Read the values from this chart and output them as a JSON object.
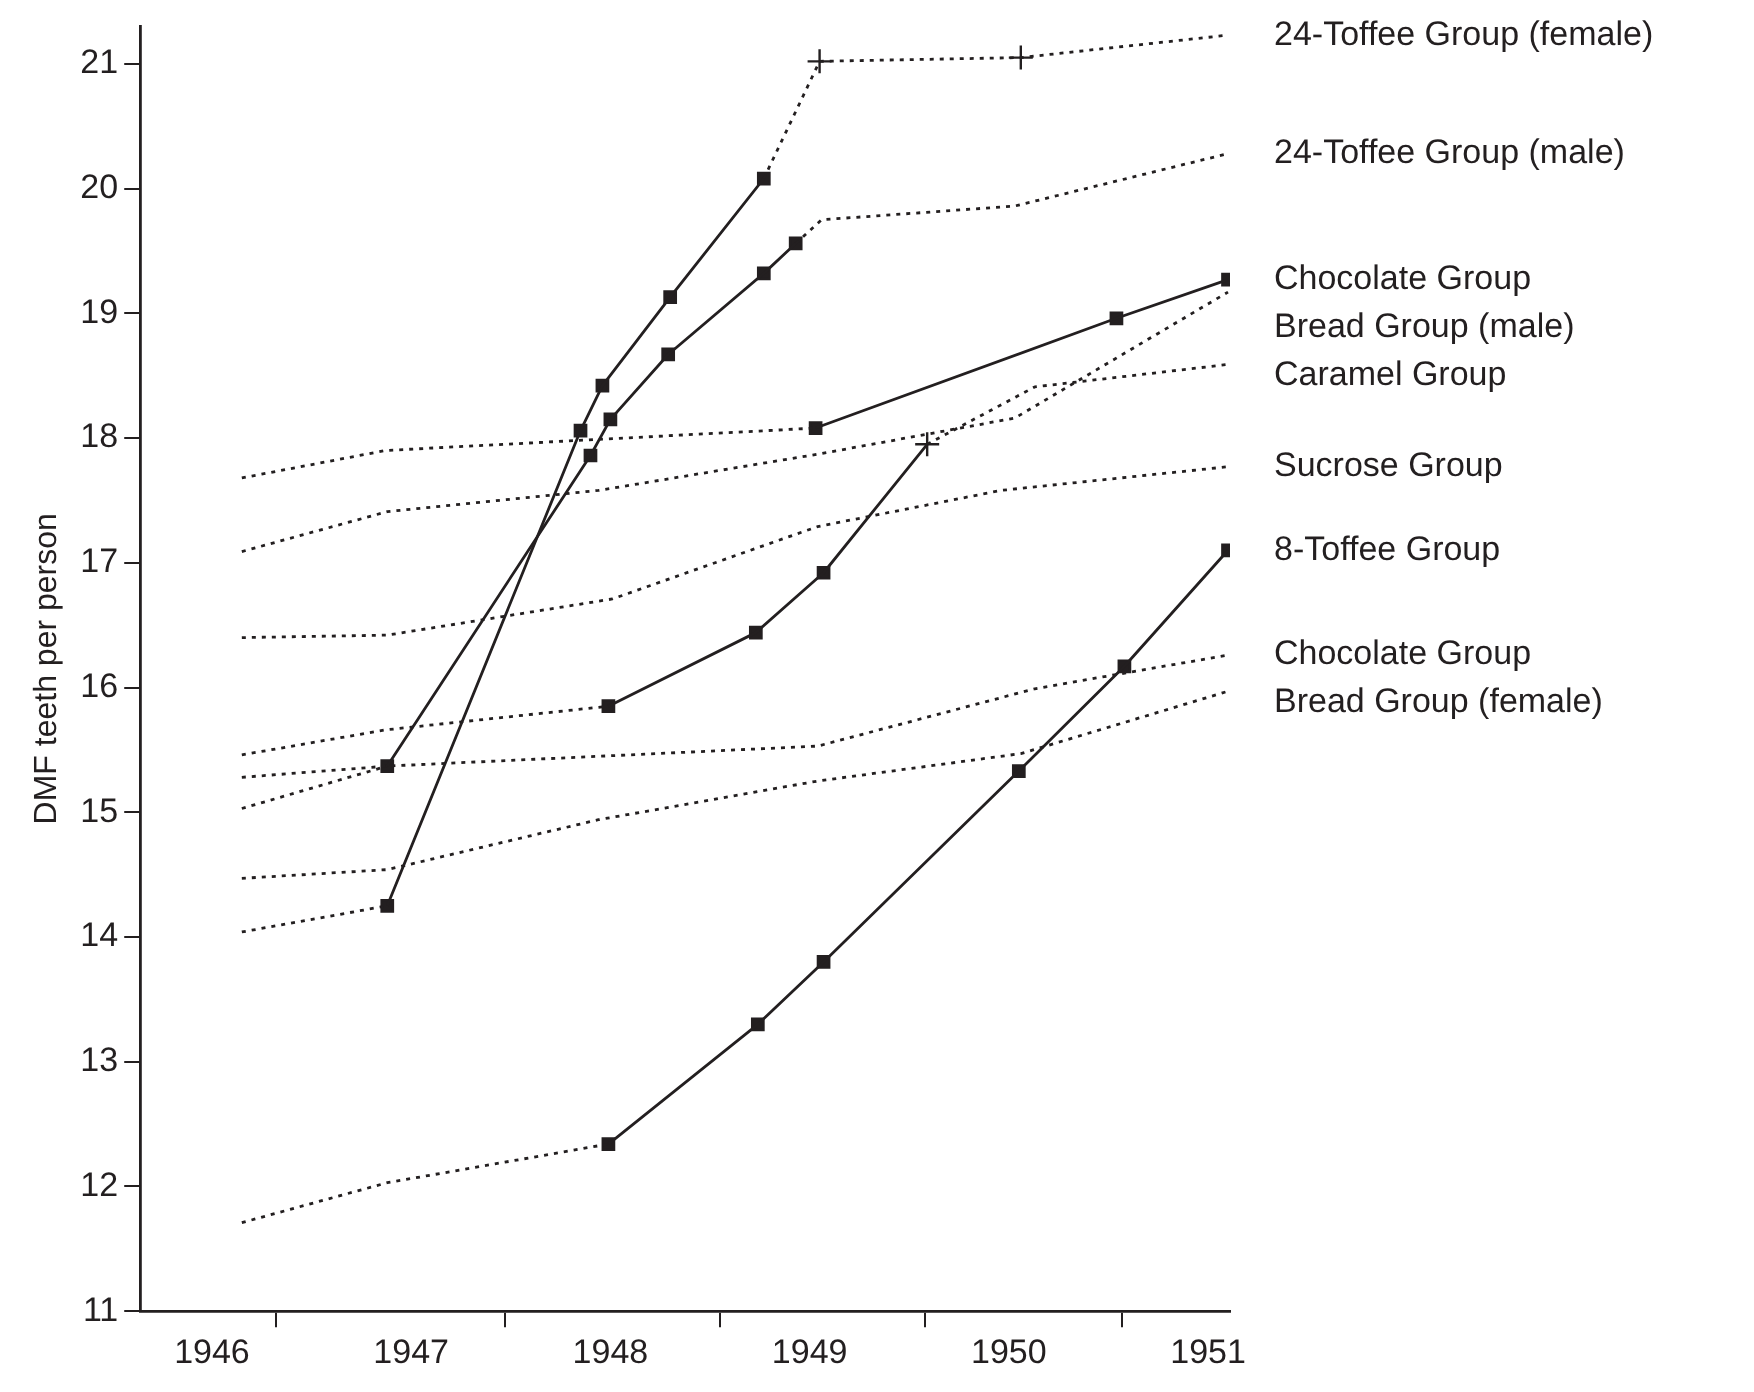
{
  "chart_data": {
    "type": "line",
    "ylabel": "DMF teeth per person",
    "xlim": [
      1945.64,
      1951.11
    ],
    "ylim": [
      11,
      21.3
    ],
    "xticks": [
      {
        "value": 1946,
        "label": "1946"
      },
      {
        "value": 1946.32,
        "label": null
      },
      {
        "value": 1947,
        "label": "1947"
      },
      {
        "value": 1947.47,
        "label": null
      },
      {
        "value": 1948,
        "label": "1948"
      },
      {
        "value": 1948.55,
        "label": null
      },
      {
        "value": 1949,
        "label": "1949"
      },
      {
        "value": 1949.58,
        "label": null
      },
      {
        "value": 1950,
        "label": "1950"
      },
      {
        "value": 1950.57,
        "label": null
      },
      {
        "value": 1951,
        "label": "1951"
      }
    ],
    "yticks": [
      11,
      12,
      13,
      14,
      15,
      16,
      17,
      18,
      19,
      20,
      21
    ],
    "grid": false,
    "legend": false,
    "series": [
      {
        "color": "#231f20",
        "line_style": "dotted",
        "marker": "none",
        "x": [
          1946.15,
          1946.88
        ],
        "values": [
          14.04,
          14.25
        ]
      },
      {
        "color": "#231f20",
        "line_style": "solid",
        "marker": "none",
        "x": [
          1946.88,
          1947.85,
          1947.96,
          1948.3,
          1948.77
        ],
        "values": [
          14.25,
          18.06,
          18.42,
          19.13,
          20.08
        ]
      },
      {
        "name": "24-Toffee Group (female)",
        "color": "#231f20",
        "line_style": "dotted",
        "marker": "none",
        "x": [
          1948.77,
          1949.05,
          1950.06,
          1951.1
        ],
        "values": [
          20.08,
          21.02,
          21.05,
          21.23
        ]
      },
      {
        "color": "#231f20",
        "line_style": "dotted",
        "marker": "none",
        "x": [
          1946.15,
          1946.88
        ],
        "values": [
          15.03,
          15.37
        ]
      },
      {
        "color": "#231f20",
        "line_style": "solid",
        "marker": "none",
        "x": [
          1946.88,
          1947.9,
          1948.0,
          1948.29,
          1948.77,
          1948.93
        ],
        "values": [
          15.37,
          17.86,
          18.15,
          18.67,
          19.32,
          19.56
        ]
      },
      {
        "name": "24-Toffee Group (male)",
        "color": "#231f20",
        "line_style": "dotted",
        "marker": "none",
        "x": [
          1948.93,
          1949.06,
          1950.03,
          1951.1
        ],
        "values": [
          19.56,
          19.75,
          19.86,
          20.28
        ]
      },
      {
        "color": "#231f20",
        "line_style": "dotted",
        "marker": "none",
        "x": [
          1946.15,
          1946.87,
          1949.03
        ],
        "values": [
          17.68,
          17.9,
          18.08
        ]
      },
      {
        "name": "Chocolate Group",
        "color": "#231f20",
        "line_style": "solid",
        "marker": "none",
        "x": [
          1949.03,
          1950.54,
          1951.1
        ],
        "values": [
          18.08,
          18.96,
          19.27
        ]
      },
      {
        "name": "Bread Group (male)",
        "color": "#231f20",
        "line_style": "dotted",
        "marker": "none",
        "x": [
          1946.15,
          1946.88,
          1947.94,
          1949.04,
          1950.03,
          1951.1
        ],
        "values": [
          17.09,
          17.41,
          17.58,
          17.87,
          18.16,
          19.17
        ]
      },
      {
        "color": "#231f20",
        "line_style": "dotted",
        "marker": "none",
        "x": [
          1946.15,
          1946.87,
          1947.99
        ],
        "values": [
          15.46,
          15.66,
          15.85
        ]
      },
      {
        "color": "#231f20",
        "line_style": "solid",
        "marker": "none",
        "x": [
          1947.99,
          1948.73,
          1949.07,
          1949.59
        ],
        "values": [
          15.85,
          16.44,
          16.92,
          17.95
        ]
      },
      {
        "name": "Caramel Group",
        "color": "#231f20",
        "line_style": "dotted",
        "marker": "none",
        "x": [
          1949.59,
          1950.13,
          1951.1
        ],
        "values": [
          17.95,
          18.41,
          18.59
        ]
      },
      {
        "name": "Sucrose Group",
        "color": "#231f20",
        "line_style": "dotted",
        "marker": "none",
        "x": [
          1946.15,
          1946.88,
          1948.01,
          1949.04,
          1949.96,
          1951.1
        ],
        "values": [
          16.4,
          16.42,
          16.71,
          17.29,
          17.58,
          17.77
        ]
      },
      {
        "color": "#231f20",
        "line_style": "dotted",
        "marker": "none",
        "x": [
          1946.15,
          1946.88,
          1947.99
        ],
        "values": [
          11.71,
          12.03,
          12.34
        ]
      },
      {
        "name": "8-Toffee Group",
        "color": "#231f20",
        "line_style": "solid",
        "marker": "none",
        "x": [
          1947.99,
          1948.74,
          1949.07,
          1950.05,
          1950.58,
          1951.1
        ],
        "values": [
          12.34,
          13.3,
          13.8,
          15.33,
          16.17,
          17.1
        ]
      },
      {
        "name": "Chocolate Group",
        "color": "#231f20",
        "line_style": "dotted",
        "marker": "none",
        "x": [
          1946.15,
          1946.88,
          1949.04,
          1950.13,
          1951.1
        ],
        "values": [
          15.28,
          15.37,
          15.53,
          15.99,
          16.26
        ]
      },
      {
        "name": "Bread Group (female)",
        "color": "#231f20",
        "line_style": "dotted",
        "marker": "none",
        "x": [
          1946.15,
          1946.88,
          1947.94,
          1949.04,
          1950.06,
          1951.1
        ],
        "values": [
          14.47,
          14.54,
          14.94,
          15.25,
          15.47,
          15.97
        ]
      },
      {
        "type": "scatter",
        "color": "#231f20",
        "marker": "square",
        "x": [
          1946.88,
          1947.85,
          1947.96,
          1948.3,
          1948.77,
          1946.88,
          1947.9,
          1948.0,
          1948.29,
          1948.77,
          1948.93,
          1949.03,
          1950.54,
          1951.1,
          1947.99,
          1948.73,
          1949.07,
          1947.99,
          1948.74,
          1949.07,
          1950.05,
          1950.58,
          1951.1
        ],
        "values": [
          14.25,
          18.06,
          18.42,
          19.13,
          20.08,
          15.37,
          17.86,
          18.15,
          18.67,
          19.32,
          19.56,
          18.08,
          18.96,
          19.27,
          15.85,
          16.44,
          16.92,
          12.34,
          13.3,
          13.8,
          15.33,
          16.17,
          17.1
        ]
      },
      {
        "type": "scatter",
        "color": "#231f20",
        "marker": "cross",
        "x": [
          1949.05,
          1950.06,
          1949.59
        ],
        "values": [
          21.02,
          21.05,
          17.95
        ]
      }
    ]
  }
}
